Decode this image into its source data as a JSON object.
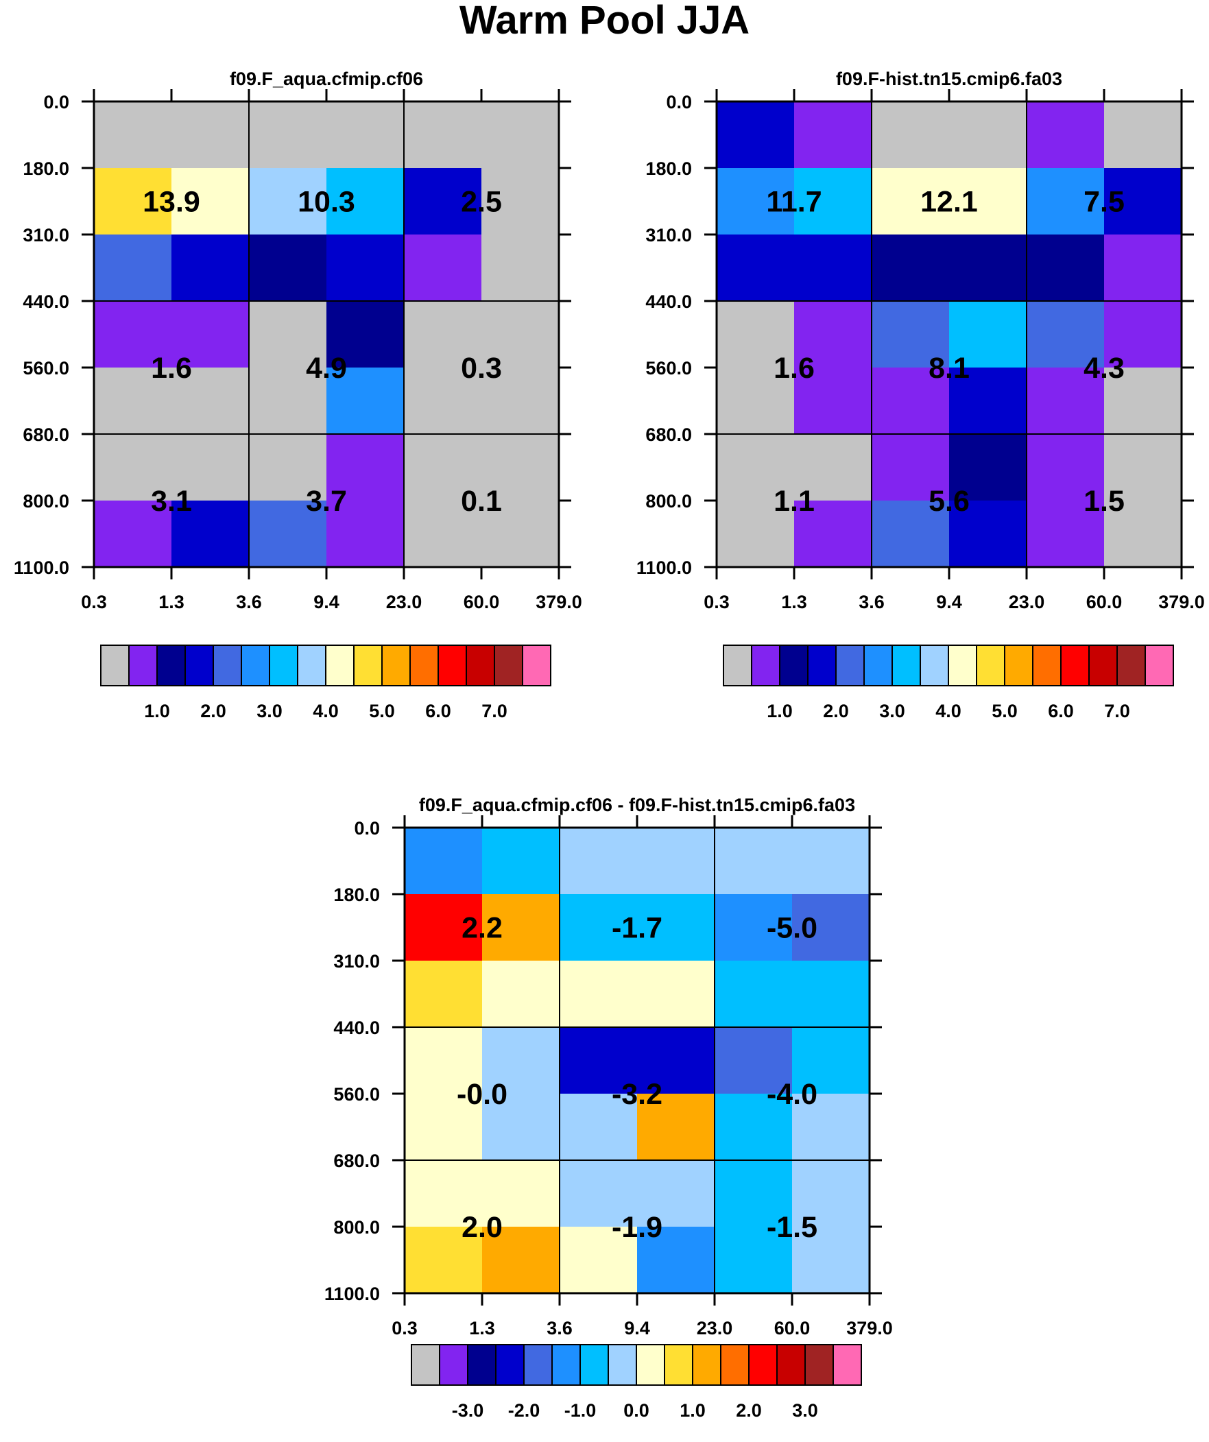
{
  "title": "Warm Pool JJA",
  "palette": [
    "#c4c4c4",
    "#8224f0",
    "#00008f",
    "#0000cc",
    "#4169e1",
    "#1e90ff",
    "#00bfff",
    "#a0d2ff",
    "#ffffcc",
    "#ffdf33",
    "#ffaa00",
    "#ff6e00",
    "#ff0000",
    "#c80000",
    "#a02323",
    "#ff69b4"
  ],
  "colors": {
    "grid_line": "#000000",
    "background": "#ffffff"
  },
  "chart_data": [
    {
      "type": "heatmap",
      "title": "f09.F_aqua.cfmip.cf06",
      "x_ticks": [
        "0.3",
        "1.3",
        "3.6",
        "9.4",
        "23.0",
        "60.0",
        "379.0"
      ],
      "y_ticks": [
        "0.0",
        "180.0",
        "310.0",
        "440.0",
        "560.0",
        "680.0",
        "800.0",
        "1100.0"
      ],
      "cell_color_index": [
        [
          0,
          0,
          0,
          0,
          0,
          0
        ],
        [
          9,
          8,
          7,
          6,
          3,
          0
        ],
        [
          4,
          3,
          2,
          3,
          1,
          0
        ],
        [
          1,
          1,
          0,
          2,
          0,
          0
        ],
        [
          0,
          0,
          0,
          5,
          0,
          0
        ],
        [
          0,
          0,
          0,
          1,
          0,
          0
        ],
        [
          1,
          3,
          4,
          1,
          0,
          0
        ]
      ],
      "block_labels": [
        [
          "13.9",
          "10.3",
          "2.5"
        ],
        [
          "1.6",
          "4.9",
          "0.3"
        ],
        [
          "3.1",
          "3.7",
          "0.1"
        ]
      ],
      "colorbar_labels": [
        "1.0",
        "2.0",
        "3.0",
        "4.0",
        "5.0",
        "6.0",
        "7.0"
      ]
    },
    {
      "type": "heatmap",
      "title": "f09.F-hist.tn15.cmip6.fa03",
      "x_ticks": [
        "0.3",
        "1.3",
        "3.6",
        "9.4",
        "23.0",
        "60.0",
        "379.0"
      ],
      "y_ticks": [
        "0.0",
        "180.0",
        "310.0",
        "440.0",
        "560.0",
        "680.0",
        "800.0",
        "1100.0"
      ],
      "cell_color_index": [
        [
          3,
          1,
          0,
          0,
          1,
          0
        ],
        [
          5,
          6,
          8,
          8,
          5,
          3
        ],
        [
          3,
          3,
          2,
          2,
          2,
          1
        ],
        [
          0,
          1,
          4,
          6,
          4,
          1
        ],
        [
          0,
          1,
          1,
          3,
          1,
          0
        ],
        [
          0,
          0,
          1,
          2,
          1,
          0
        ],
        [
          0,
          1,
          4,
          3,
          1,
          0
        ]
      ],
      "block_labels": [
        [
          "11.7",
          "12.1",
          "7.5"
        ],
        [
          "1.6",
          "8.1",
          "4.3"
        ],
        [
          "1.1",
          "5.6",
          "1.5"
        ]
      ],
      "colorbar_labels": [
        "1.0",
        "2.0",
        "3.0",
        "4.0",
        "5.0",
        "6.0",
        "7.0"
      ]
    },
    {
      "type": "heatmap",
      "title": "f09.F_aqua.cfmip.cf06 - f09.F-hist.tn15.cmip6.fa03",
      "x_ticks": [
        "0.3",
        "1.3",
        "3.6",
        "9.4",
        "23.0",
        "60.0",
        "379.0"
      ],
      "y_ticks": [
        "0.0",
        "180.0",
        "310.0",
        "440.0",
        "560.0",
        "680.0",
        "800.0",
        "1100.0"
      ],
      "cell_color_index": [
        [
          5,
          6,
          7,
          7,
          7,
          7
        ],
        [
          12,
          10,
          6,
          6,
          5,
          4
        ],
        [
          9,
          8,
          8,
          8,
          6,
          6
        ],
        [
          8,
          7,
          3,
          3,
          4,
          6
        ],
        [
          8,
          7,
          7,
          10,
          6,
          7
        ],
        [
          8,
          8,
          7,
          7,
          6,
          7
        ],
        [
          9,
          10,
          8,
          5,
          6,
          7
        ]
      ],
      "block_labels": [
        [
          "2.2",
          "-1.7",
          "-5.0"
        ],
        [
          "-0.0",
          "-3.2",
          "-4.0"
        ],
        [
          "2.0",
          "-1.9",
          "-1.5"
        ]
      ],
      "colorbar_labels": [
        "-3.0",
        "-2.0",
        "-1.0",
        "0.0",
        "1.0",
        "2.0",
        "3.0"
      ]
    }
  ]
}
